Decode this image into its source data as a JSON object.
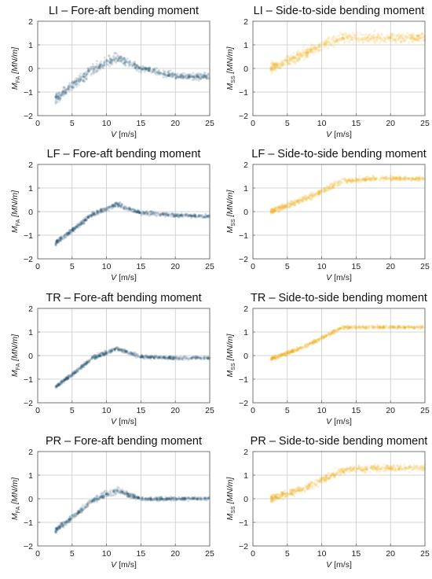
{
  "colors": {
    "fore_aft": "#1f4e6b",
    "side_to_side": "#f2b01e",
    "grid": "#c8c8c8",
    "frame": "#666666"
  },
  "axes_text": {
    "x_var": "V",
    "x_unit": "[m/s]",
    "y_fa_var": "M",
    "y_fa_sub": "FA",
    "y_ss_var": "M",
    "y_ss_sub": "SS",
    "y_unit": "[MN/m]"
  },
  "chart_data": [
    {
      "type": "scatter",
      "title": "LI – Fore-aft bending moment",
      "component": "fore_aft",
      "color": "#1f4e6b",
      "xlabel": "V [m/s]",
      "ylabel": "M_FA [MN/m]",
      "xlim": [
        0,
        25
      ],
      "ylim": [
        -2,
        2
      ],
      "xticks": [
        0,
        5,
        10,
        15,
        20,
        25
      ],
      "yticks": [
        -2,
        -1,
        0,
        1,
        2
      ],
      "grid": true,
      "trend": {
        "v": [
          2.5,
          5,
          8,
          11.5,
          15,
          20,
          25
        ],
        "m": [
          -1.3,
          -0.75,
          -0.05,
          0.45,
          0.0,
          -0.3,
          -0.35
        ]
      },
      "spread": [
        0.42,
        0.38,
        0.4,
        0.42,
        0.3,
        0.28,
        0.28
      ]
    },
    {
      "type": "scatter",
      "title": "LI – Side-to-side bending moment",
      "component": "side_to_side",
      "color": "#f2b01e",
      "xlabel": "V [m/s]",
      "ylabel": "M_SS [MN/m]",
      "xlim": [
        0,
        25
      ],
      "ylim": [
        -2,
        2
      ],
      "xticks": [
        0,
        5,
        10,
        15,
        20,
        25
      ],
      "yticks": [
        -2,
        -1,
        0,
        1,
        2
      ],
      "grid": true,
      "trend": {
        "v": [
          2.5,
          5,
          8,
          11,
          13,
          18,
          25
        ],
        "m": [
          0.0,
          0.3,
          0.7,
          1.1,
          1.3,
          1.3,
          1.3
        ]
      },
      "spread": [
        0.4,
        0.4,
        0.42,
        0.45,
        0.42,
        0.4,
        0.4
      ]
    },
    {
      "type": "scatter",
      "title": "LF – Fore-aft bending moment",
      "component": "fore_aft",
      "color": "#1f4e6b",
      "xlabel": "V [m/s]",
      "ylabel": "M_FA [MN/m]",
      "xlim": [
        0,
        25
      ],
      "ylim": [
        -2,
        2
      ],
      "xticks": [
        0,
        5,
        10,
        15,
        20,
        25
      ],
      "yticks": [
        -2,
        -1,
        0,
        1,
        2
      ],
      "grid": true,
      "trend": {
        "v": [
          2.5,
          5,
          8,
          11.5,
          15,
          20,
          25
        ],
        "m": [
          -1.35,
          -0.8,
          -0.1,
          0.3,
          -0.05,
          -0.15,
          -0.2
        ]
      },
      "spread": [
        0.22,
        0.2,
        0.2,
        0.2,
        0.16,
        0.15,
        0.15
      ]
    },
    {
      "type": "scatter",
      "title": "LF – Side-to-side bending moment",
      "component": "side_to_side",
      "color": "#f2b01e",
      "xlabel": "V [m/s]",
      "ylabel": "M_SS [MN/m]",
      "xlim": [
        0,
        25
      ],
      "ylim": [
        -2,
        2
      ],
      "xticks": [
        0,
        5,
        10,
        15,
        20,
        25
      ],
      "yticks": [
        -2,
        -1,
        0,
        1,
        2
      ],
      "grid": true,
      "trend": {
        "v": [
          2.5,
          5,
          8,
          11,
          13,
          18,
          25
        ],
        "m": [
          0.0,
          0.25,
          0.6,
          1.0,
          1.3,
          1.4,
          1.4
        ]
      },
      "spread": [
        0.25,
        0.25,
        0.28,
        0.28,
        0.22,
        0.18,
        0.18
      ]
    },
    {
      "type": "scatter",
      "title": "TR – Fore-aft bending moment",
      "component": "fore_aft",
      "color": "#1f4e6b",
      "xlabel": "V [m/s]",
      "ylabel": "M_FA [MN/m]",
      "xlim": [
        0,
        25
      ],
      "ylim": [
        -2,
        2
      ],
      "xticks": [
        0,
        5,
        10,
        15,
        20,
        25
      ],
      "yticks": [
        -2,
        -1,
        0,
        1,
        2
      ],
      "grid": true,
      "trend": {
        "v": [
          2.5,
          5,
          8,
          11.5,
          15,
          20,
          25
        ],
        "m": [
          -1.35,
          -0.8,
          -0.1,
          0.3,
          -0.05,
          -0.1,
          -0.1
        ]
      },
      "spread": [
        0.18,
        0.16,
        0.16,
        0.16,
        0.14,
        0.14,
        0.14
      ]
    },
    {
      "type": "scatter",
      "title": "TR – Side-to-side bending moment",
      "component": "side_to_side",
      "color": "#f2b01e",
      "xlabel": "V [m/s]",
      "ylabel": "M_SS [MN/m]",
      "xlim": [
        0,
        25
      ],
      "ylim": [
        -2,
        2
      ],
      "xticks": [
        0,
        5,
        10,
        15,
        20,
        25
      ],
      "yticks": [
        -2,
        -1,
        0,
        1,
        2
      ],
      "grid": true,
      "trend": {
        "v": [
          2.5,
          5,
          8,
          11,
          13,
          18,
          25
        ],
        "m": [
          -0.15,
          0.1,
          0.45,
          0.9,
          1.2,
          1.2,
          1.2
        ]
      },
      "spread": [
        0.15,
        0.15,
        0.16,
        0.16,
        0.14,
        0.14,
        0.14
      ]
    },
    {
      "type": "scatter",
      "title": "PR – Fore-aft bending moment",
      "component": "fore_aft",
      "color": "#1f4e6b",
      "xlabel": "V [m/s]",
      "ylabel": "M_FA [MN/m]",
      "xlim": [
        0,
        25
      ],
      "ylim": [
        -2,
        2
      ],
      "xticks": [
        0,
        5,
        10,
        15,
        20,
        25
      ],
      "yticks": [
        -2,
        -1,
        0,
        1,
        2
      ],
      "grid": true,
      "trend": {
        "v": [
          2.5,
          5,
          8,
          11.5,
          15,
          20,
          25
        ],
        "m": [
          -1.35,
          -0.8,
          -0.05,
          0.35,
          0.0,
          0.0,
          0.0
        ]
      },
      "spread": [
        0.25,
        0.22,
        0.25,
        0.25,
        0.18,
        0.16,
        0.16
      ]
    },
    {
      "type": "scatter",
      "title": "PR – Side-to-side bending moment",
      "component": "side_to_side",
      "color": "#f2b01e",
      "xlabel": "V [m/s]",
      "ylabel": "M_SS [MN/m]",
      "xlim": [
        0,
        25
      ],
      "ylim": [
        -2,
        2
      ],
      "xticks": [
        0,
        5,
        10,
        15,
        20,
        25
      ],
      "yticks": [
        -2,
        -1,
        0,
        1,
        2
      ],
      "grid": true,
      "trend": {
        "v": [
          2.5,
          5,
          8,
          11,
          13,
          18,
          25
        ],
        "m": [
          0.0,
          0.2,
          0.5,
          0.95,
          1.2,
          1.3,
          1.3
        ]
      },
      "spread": [
        0.3,
        0.3,
        0.32,
        0.34,
        0.3,
        0.28,
        0.28
      ]
    }
  ]
}
